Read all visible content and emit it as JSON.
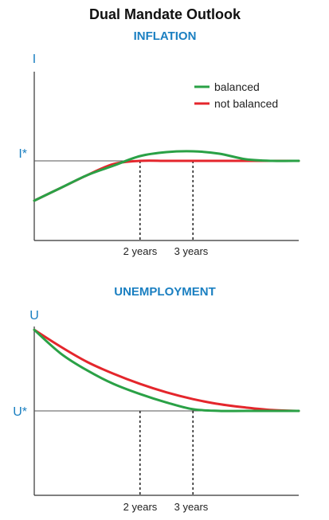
{
  "page": {
    "title": "Dual Mandate Outlook",
    "accent_color": "#1a7fc1"
  },
  "chart_data": [
    {
      "type": "line",
      "title": "INFLATION",
      "ylabel": "I",
      "target_label": "I*",
      "xlim": [
        0,
        5
      ],
      "ylim": [
        0,
        1
      ],
      "x_ticks": [
        {
          "x": 2,
          "label": "2 years"
        },
        {
          "x": 3,
          "label": "3 years"
        }
      ],
      "target": 0.5,
      "grid": false,
      "legend": "top-right",
      "series": [
        {
          "name": "balanced",
          "color": "#2aa146",
          "points": [
            [
              0,
              0.25
            ],
            [
              0.5,
              0.33
            ],
            [
              1,
              0.41
            ],
            [
              1.5,
              0.47
            ],
            [
              2,
              0.53
            ],
            [
              2.5,
              0.555
            ],
            [
              3,
              0.56
            ],
            [
              3.5,
              0.545
            ],
            [
              4,
              0.51
            ],
            [
              4.5,
              0.5
            ],
            [
              5,
              0.5
            ]
          ]
        },
        {
          "name": "not balanced",
          "color": "#e4262c",
          "points": [
            [
              0,
              0.25
            ],
            [
              0.5,
              0.33
            ],
            [
              1,
              0.41
            ],
            [
              1.5,
              0.48
            ],
            [
              2,
              0.5
            ],
            [
              2.5,
              0.5
            ],
            [
              3,
              0.5
            ],
            [
              4,
              0.5
            ],
            [
              5,
              0.5
            ]
          ]
        }
      ]
    },
    {
      "type": "line",
      "title": "UNEMPLOYMENT",
      "ylabel": "U",
      "target_label": "U*",
      "xlim": [
        0,
        5
      ],
      "ylim": [
        0,
        1
      ],
      "x_ticks": [
        {
          "x": 2,
          "label": "2 years"
        },
        {
          "x": 3,
          "label": "3 years"
        }
      ],
      "target": 0.5,
      "grid": false,
      "series": [
        {
          "name": "balanced",
          "color": "#2aa146",
          "points": [
            [
              0,
              0.98
            ],
            [
              0.5,
              0.84
            ],
            [
              1,
              0.74
            ],
            [
              1.5,
              0.66
            ],
            [
              2,
              0.6
            ],
            [
              2.5,
              0.55
            ],
            [
              3,
              0.51
            ],
            [
              3.5,
              0.5
            ],
            [
              4,
              0.5
            ],
            [
              5,
              0.5
            ]
          ]
        },
        {
          "name": "not balanced",
          "color": "#e4262c",
          "points": [
            [
              0,
              0.98
            ],
            [
              0.5,
              0.88
            ],
            [
              1,
              0.79
            ],
            [
              1.5,
              0.72
            ],
            [
              2,
              0.66
            ],
            [
              2.5,
              0.61
            ],
            [
              3,
              0.57
            ],
            [
              3.5,
              0.54
            ],
            [
              4,
              0.52
            ],
            [
              4.5,
              0.505
            ],
            [
              5,
              0.5
            ]
          ]
        }
      ]
    }
  ]
}
